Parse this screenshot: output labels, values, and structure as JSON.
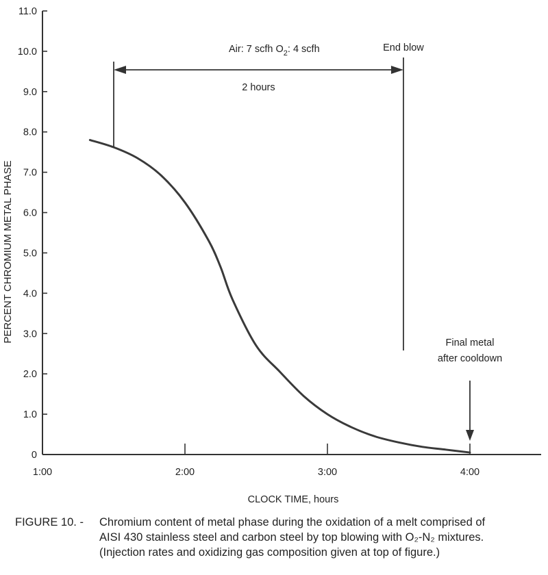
{
  "chart_data": {
    "type": "line",
    "ylabel": "PERCENT CHROMIUM METAL PHASE",
    "xlabel": "CLOCK TIME, hours",
    "xlim": [
      "1:00",
      "4:30"
    ],
    "ylim": [
      0,
      11
    ],
    "x_ticks": [
      "1:00",
      "2:00",
      "3:00",
      "4:00"
    ],
    "y_ticks": [
      "0",
      "1.0",
      "2.0",
      "3.0",
      "4.0",
      "5.0",
      "6.0",
      "7.0",
      "8.0",
      "9.0",
      "10.0",
      "11.0"
    ],
    "grid": false,
    "series": [
      {
        "x": [
          "1:20",
          "1:30",
          "1:40",
          "1:50",
          "2:00",
          "2:10",
          "2:15",
          "2:20",
          "2:30",
          "2:40",
          "2:50",
          "3:00",
          "3:10",
          "3:20",
          "3:30",
          "3:40",
          "3:50",
          "4:00"
        ],
        "y": [
          7.8,
          7.62,
          7.35,
          6.92,
          6.25,
          5.3,
          4.65,
          3.85,
          2.7,
          2.05,
          1.45,
          1.0,
          0.68,
          0.45,
          0.3,
          0.19,
          0.12,
          0.05
        ]
      }
    ],
    "annotations": {
      "gas_label": "Air: 7 scfh O",
      "gas_sub": "2",
      "gas_rest": ": 4 scfh",
      "duration_label": "2 hours",
      "duration_start": "1:30",
      "duration_end": "3:32",
      "end_label": "End blow",
      "end_time": "3:32",
      "final_label_line1": "Final metal",
      "final_label_line2": "after cooldown",
      "final_time": "4:00"
    }
  },
  "caption": {
    "head": "FIGURE 10. -",
    "line1": "Chromium content of metal phase during the oxidation of a melt comprised of",
    "line2": "AISI 430 stainless steel and carbon steel by top blowing with O₂-N₂ mixtures.",
    "line3": "(Injection rates and oxidizing gas composition given at top of figure.)"
  },
  "colors": {
    "curve": "#3a3a3a",
    "axis": "#333333",
    "text": "#222222"
  }
}
